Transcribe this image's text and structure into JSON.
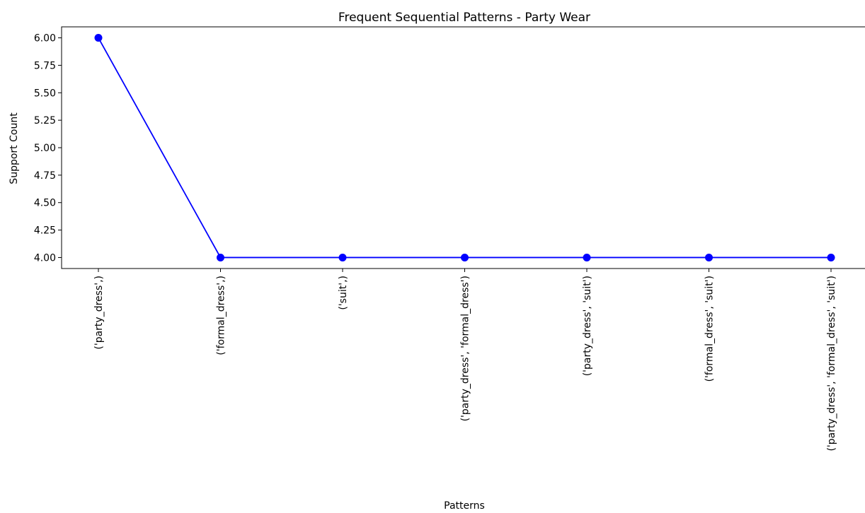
{
  "chart_data": {
    "type": "line",
    "title": "Frequent Sequential Patterns - Party Wear",
    "xlabel": "Patterns",
    "ylabel": "Support Count",
    "categories": [
      "('party_dress',)",
      "('formal_dress',)",
      "('suit',)",
      "('party_dress', 'formal_dress')",
      "('party_dress', 'suit')",
      "('formal_dress', 'suit')",
      "('party_dress', 'formal_dress', 'suit')"
    ],
    "series": [
      {
        "values": [
          6,
          4,
          4,
          4,
          4,
          4,
          4
        ],
        "color": "#0000ff",
        "marker": "circle"
      }
    ],
    "ylim": [
      3.9,
      6.1
    ],
    "yticks": [
      "4.00",
      "4.25",
      "4.50",
      "4.75",
      "5.00",
      "5.25",
      "5.50",
      "5.75",
      "6.00"
    ],
    "grid": false,
    "legend": false
  }
}
